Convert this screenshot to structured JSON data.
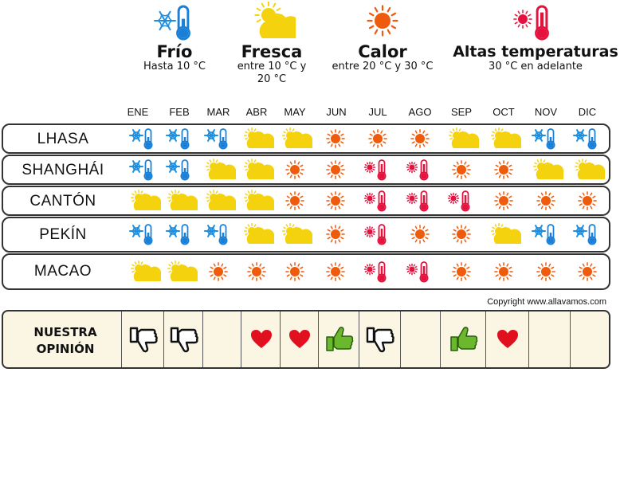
{
  "legend": [
    {
      "key": "frio",
      "title": "Frío",
      "desc": "Hasta 10 °C",
      "icon": "snow-thermometer-icon"
    },
    {
      "key": "fresca",
      "title": "Fresca",
      "desc": "entre 10 °C y 20 °C",
      "icon": "sun-cloud-icon"
    },
    {
      "key": "calor",
      "title": "Calor",
      "desc": "entre 20 °C y 30 °C",
      "icon": "sun-icon"
    },
    {
      "key": "altas",
      "title": "Altas temperaturas",
      "desc": "30 °C en adelante",
      "icon": "hot-thermometer-icon"
    }
  ],
  "months": [
    "ENE",
    "FEB",
    "MAR",
    "ABR",
    "MAY",
    "JUN",
    "JUL",
    "AGO",
    "SEP",
    "OCT",
    "NOV",
    "DIC"
  ],
  "cities": [
    {
      "name": "LHASA",
      "weather": [
        "frio",
        "frio",
        "frio",
        "fresca",
        "fresca",
        "calor",
        "calor",
        "calor",
        "fresca",
        "fresca",
        "frio",
        "frio"
      ]
    },
    {
      "name": "SHANGHÁI",
      "weather": [
        "frio",
        "frio",
        "fresca",
        "fresca",
        "calor",
        "calor",
        "altas",
        "altas",
        "calor",
        "calor",
        "fresca",
        "fresca"
      ]
    },
    {
      "name": "CANTÓN",
      "weather": [
        "fresca",
        "fresca",
        "fresca",
        "fresca",
        "calor",
        "calor",
        "altas",
        "altas",
        "altas",
        "calor",
        "calor",
        "calor"
      ]
    },
    {
      "name": "PEKÍN",
      "weather": [
        "frio",
        "frio",
        "frio",
        "fresca",
        "fresca",
        "calor",
        "altas",
        "calor",
        "calor",
        "fresca",
        "frio",
        "frio"
      ]
    },
    {
      "name": "MACAO",
      "weather": [
        "fresca",
        "fresca",
        "calor",
        "calor",
        "calor",
        "calor",
        "altas",
        "altas",
        "calor",
        "calor",
        "calor",
        "calor"
      ]
    }
  ],
  "copyright": "Copyright www.allavamos.com",
  "opinion": {
    "label_line1": "NUESTRA",
    "label_line2": "OPINIÓN",
    "ratings": [
      "thumbs-down",
      "thumbs-down",
      "",
      "heart",
      "heart",
      "thumbs-up",
      "thumbs-down",
      "",
      "thumbs-up",
      "heart",
      "",
      ""
    ]
  },
  "colors": {
    "snow": "#1e8fe0",
    "thermo_cold": "#1a7fd6",
    "thermo_hot": "#e3123e",
    "sun": "#ef5b0c",
    "cloud": "#f4d20e",
    "heart": "#e0101f",
    "thumb_up": "#6bb82e",
    "opinion_bg": "#fbf6e3"
  }
}
